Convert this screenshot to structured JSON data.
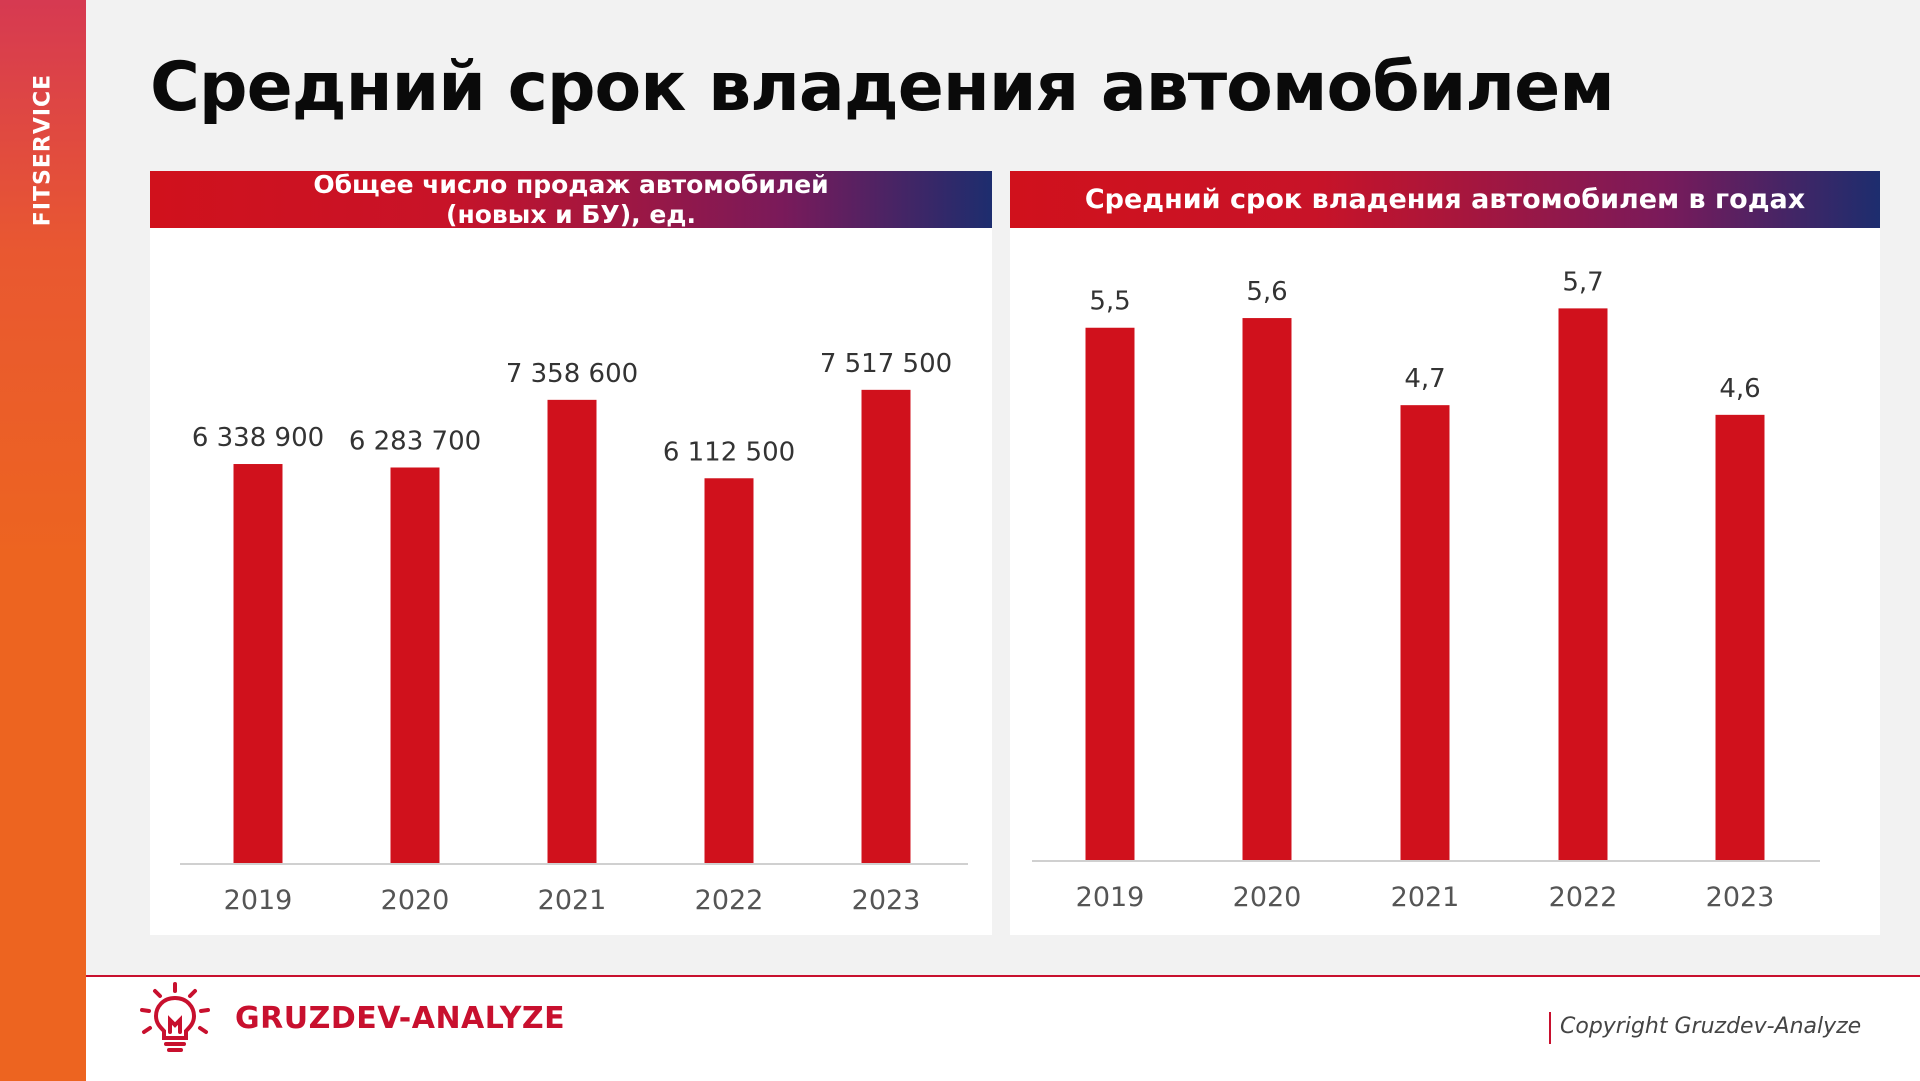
{
  "sidebar": {
    "brand": "FITSERVICE"
  },
  "page": {
    "title": "Средний срок владения автомобилем"
  },
  "colors": {
    "bar": "#d0111c",
    "accent": "#c8102e",
    "sidebar": "#ed6420"
  },
  "chart_data": [
    {
      "type": "bar",
      "title": "Общее число продаж автомобилей\n(новых и БУ), ед.",
      "categories": [
        "2019",
        "2020",
        "2021",
        "2022",
        "2023"
      ],
      "values": [
        6338900,
        6283700,
        7358600,
        6112500,
        7517500
      ],
      "labels": [
        "6 338 900",
        "6 283 700",
        "7 358 600",
        "6 112 500",
        "7 517 500"
      ],
      "ylim": [
        0,
        8500000
      ],
      "grid": false,
      "legend": "none"
    },
    {
      "type": "bar",
      "title": "Средний срок владения автомобилем в годах",
      "categories": [
        "2019",
        "2020",
        "2021",
        "2022",
        "2023"
      ],
      "values": [
        5.5,
        5.6,
        4.7,
        5.7,
        4.6
      ],
      "labels": [
        "5,5",
        "5,6",
        "4,7",
        "5,7",
        "4,6"
      ],
      "ylim": [
        0,
        6.2
      ],
      "grid": false,
      "legend": "none"
    }
  ],
  "footer": {
    "logo_text": "GRUZDEV-ANALYZE",
    "copyright": "Copyright Gruzdev-Analyze"
  }
}
